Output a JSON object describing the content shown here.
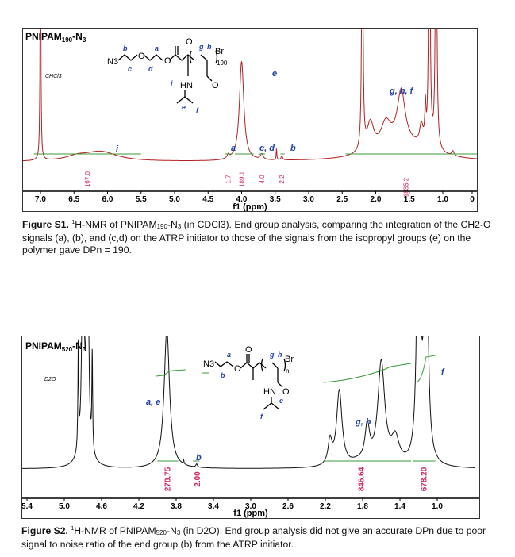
{
  "figure1": {
    "title": "PNIPAM",
    "title_sub": "190",
    "title_suffix": "-N",
    "title_sub2": "3",
    "solvent_label": "CHCl3",
    "peak_labels": {
      "i": "i",
      "a": "a",
      "e": "e",
      "cd": "c, d",
      "b": "b",
      "ghf": "g, h, f"
    },
    "structure": {
      "n3": "N3",
      "br": "Br",
      "repeat": "190",
      "hn": "HN",
      "o": "O",
      "labels": [
        "b",
        "a",
        "c",
        "d",
        "g",
        "h",
        "i",
        "e",
        "f"
      ]
    },
    "integrals": [
      "167.0",
      "1.7",
      "189.1",
      "4.0",
      "2.2",
      "1835.2"
    ],
    "x_ticks": [
      "5",
      "7.0",
      "6.5",
      "6.0",
      "5.5",
      "5.0",
      "4.5",
      "4.0",
      "3.5",
      "3.0",
      "2.5",
      "2.0",
      "1.5",
      "1.0",
      "0"
    ],
    "x_label": "f1 (ppm)",
    "line_color": "#b22222",
    "caption_bold": "Figure S1.",
    "caption_sup": "1",
    "caption_a": "H-NMR of PNIPAM",
    "caption_sub": "190",
    "caption_b": "-N",
    "caption_sub2": "3",
    "caption_c": " (in CDCl3). End group analysis, comparing the integration of the CH2-O signals (a), (b), and (c,d) on the ATRP initiator to those of the signals from the isopropyl groups (e) on the polymer gave DPn = 190."
  },
  "figure2": {
    "title": "PNIPAM",
    "title_sub": "520",
    "title_suffix": "-N",
    "title_sub2": "3",
    "solvent_label": "D2O",
    "peak_labels": {
      "ae": "a, e",
      "b": "b",
      "gh": "g, h",
      "f": "f"
    },
    "structure": {
      "n3": "N3",
      "br": "Br",
      "repeat": "n",
      "hn": "HN",
      "o": "O",
      "labels": [
        "a",
        "b",
        "g",
        "h",
        "e",
        "f"
      ]
    },
    "integrals": [
      "278.75",
      "2.00",
      "846.64",
      "678.20"
    ],
    "x_ticks": [
      "5.4",
      "5.0",
      "4.6",
      "4.2",
      "3.8",
      "3.4",
      "3.0",
      "2.6",
      "2.2",
      "1.8",
      "1.4",
      "1.0"
    ],
    "x_label": "f1 (ppm)",
    "line_color": "#111111",
    "caption_bold": "Figure S2.",
    "caption_sup": "1",
    "caption_a": "H-NMR of PNIPAM",
    "caption_sub": "520",
    "caption_b": "-N",
    "caption_sub2": "3",
    "caption_c": " (in D2O). End group analysis did not give an accurate DPn due to poor signal to noise ratio of the end group (b) from the ATRP initiator."
  },
  "colors": {
    "integral": "#3a9a3a",
    "integral_text": "#d0285a",
    "label": "#1f3fa8"
  }
}
